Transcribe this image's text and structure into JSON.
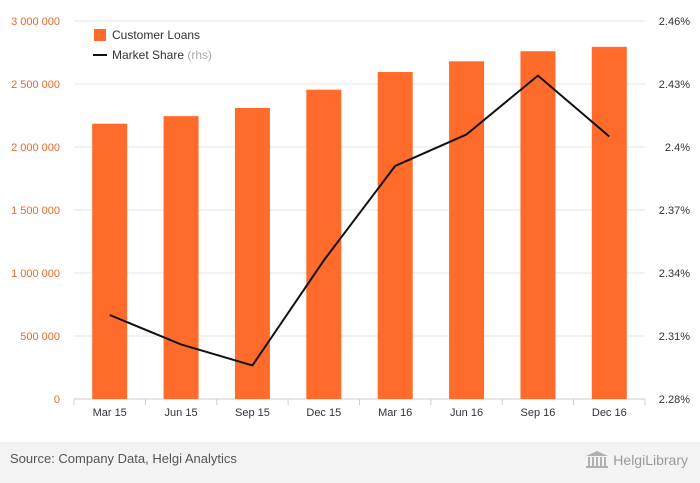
{
  "chart_data": {
    "type": "bar",
    "categories": [
      "Mar 15",
      "Jun 15",
      "Sep 15",
      "Dec 15",
      "Mar 16",
      "Jun 16",
      "Sep 16",
      "Dec 16"
    ],
    "series": [
      {
        "name": "Customer Loans",
        "type": "bar",
        "axis": "left",
        "color": "#ff6b2b",
        "values": [
          2185000,
          2245000,
          2310000,
          2455000,
          2595000,
          2680000,
          2760000,
          2795000
        ]
      },
      {
        "name": "Market Share",
        "name_suffix": "(rhs)",
        "type": "line",
        "axis": "right",
        "color": "#111111",
        "values": [
          2.32,
          2.306,
          2.296,
          2.346,
          2.391,
          2.406,
          2.434,
          2.405
        ]
      }
    ],
    "y_left": {
      "min": 0,
      "max": 3000000,
      "ticks": [
        "0",
        "500 000",
        "1 000 000",
        "1 500 000",
        "2 000 000",
        "2 500 000",
        "3 000 000"
      ]
    },
    "y_right": {
      "min": 2.28,
      "max": 2.46,
      "ticks": [
        "2.28%",
        "2.31%",
        "2.34%",
        "2.37%",
        "2.4%",
        "2.43%",
        "2.46%"
      ]
    },
    "grid": true,
    "legend_position": "top-left"
  },
  "footer": {
    "source": "Source: Company Data, Helgi Analytics",
    "brand": "HelgiLibrary"
  }
}
